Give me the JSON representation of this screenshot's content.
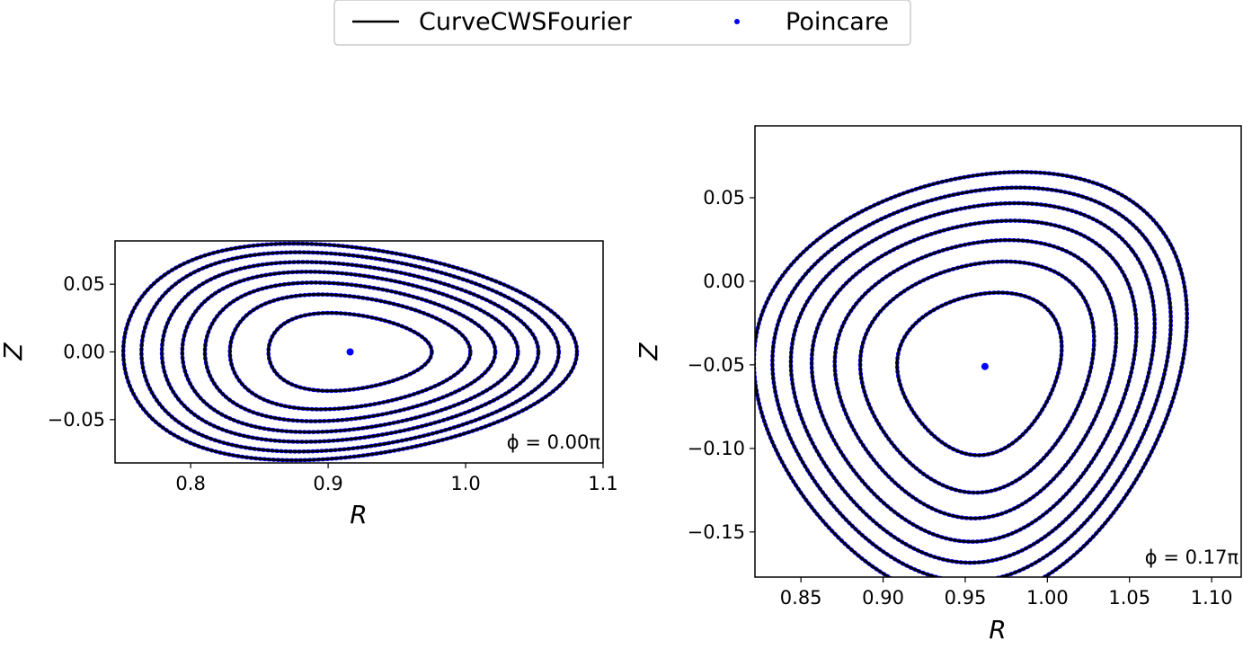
{
  "legend": {
    "entries": [
      {
        "label": "CurveCWSFourier",
        "color": "#000000",
        "kind": "line"
      },
      {
        "label": "Poincare",
        "color": "#0000ff",
        "kind": "marker"
      }
    ],
    "placement": "top-center"
  },
  "chart_data": [
    {
      "type": "line",
      "xlabel": "R",
      "ylabel": "Z",
      "xlim": [
        0.745,
        1.1
      ],
      "ylim": [
        -0.082,
        0.082
      ],
      "xticks": [
        {
          "v": 0.8,
          "label": "0.8"
        },
        {
          "v": 0.9,
          "label": "0.9"
        },
        {
          "v": 1.0,
          "label": "1.0"
        },
        {
          "v": 1.1,
          "label": "1.1"
        }
      ],
      "yticks": [
        {
          "v": 0.05,
          "label": "0.05"
        },
        {
          "v": 0.0,
          "label": "0.00"
        },
        {
          "v": -0.05,
          "label": "−0.05"
        }
      ],
      "annotation": "ϕ = 0.00π",
      "axis": {
        "center": [
          0.916,
          0.0
        ],
        "span_r": 0.33,
        "span_z": 0.16,
        "angle_deg": 0
      },
      "series": [
        {
          "scale": 0.0
        },
        {
          "scale": 0.36
        },
        {
          "scale": 0.53
        },
        {
          "scale": 0.64
        },
        {
          "scale": 0.74
        },
        {
          "scale": 0.83
        },
        {
          "scale": 0.92
        },
        {
          "scale": 1.0
        }
      ]
    },
    {
      "type": "line",
      "xlabel": "R",
      "ylabel": "Z",
      "xlim": [
        0.822,
        1.118
      ],
      "ylim": [
        -0.177,
        0.093
      ],
      "xticks": [
        {
          "v": 0.85,
          "label": "0.85"
        },
        {
          "v": 0.9,
          "label": "0.90"
        },
        {
          "v": 0.95,
          "label": "0.95"
        },
        {
          "v": 1.0,
          "label": "1.00"
        },
        {
          "v": 1.05,
          "label": "1.05"
        },
        {
          "v": 1.1,
          "label": "1.10"
        }
      ],
      "yticks": [
        {
          "v": 0.05,
          "label": "0.05"
        },
        {
          "v": 0.0,
          "label": "0.00"
        },
        {
          "v": -0.05,
          "label": "−0.05"
        },
        {
          "v": -0.1,
          "label": "−0.10"
        },
        {
          "v": -0.15,
          "label": "−0.15"
        }
      ],
      "annotation": "ϕ = 0.17π",
      "axis": {
        "center": [
          0.962,
          -0.051
        ],
        "span_r": 0.27,
        "span_z": 0.245,
        "angle_deg": 38
      },
      "series": [
        {
          "scale": 0.0
        },
        {
          "scale": 0.38
        },
        {
          "scale": 0.54
        },
        {
          "scale": 0.65
        },
        {
          "scale": 0.75
        },
        {
          "scale": 0.84
        },
        {
          "scale": 0.92
        },
        {
          "scale": 1.0
        }
      ]
    }
  ]
}
